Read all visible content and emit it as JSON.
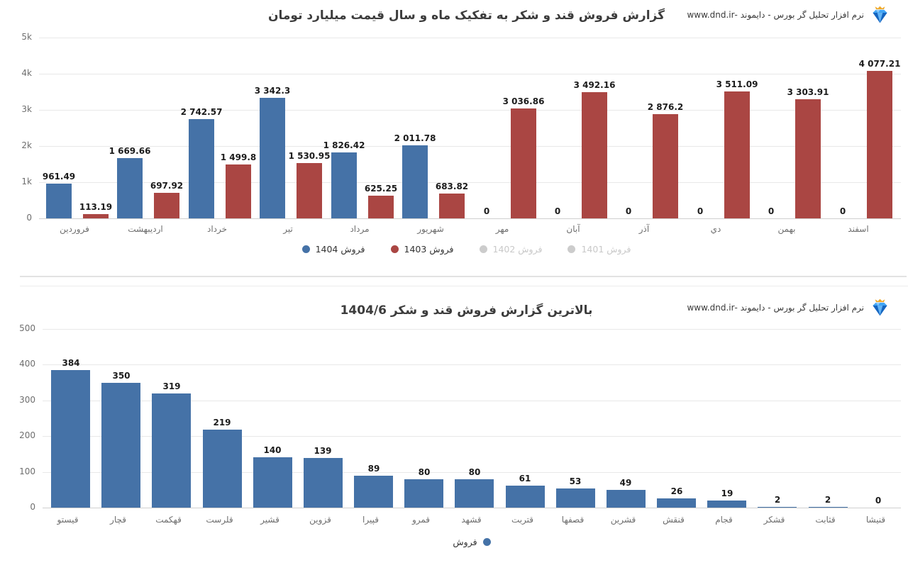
{
  "brand": {
    "text": "نرم افزار تحلیل گر بورس - دایموند -www.dnd.ir",
    "logo": "diamond-crown-icon"
  },
  "colors": {
    "blue": "#4572a7",
    "red": "#aa4643",
    "disabled": "#cccccc"
  },
  "chart_data": [
    {
      "type": "bar",
      "title": "گزارش فروش قند و شکر به تفکیک ماه و سال قیمت میلیارد تومان",
      "categories": [
        "فروردین",
        "اردیبهشت",
        "خرداد",
        "تیر",
        "مرداد",
        "شهریور",
        "مهر",
        "آبان",
        "آذر",
        "دي",
        "بهمن",
        "اسفند"
      ],
      "series": [
        {
          "name": "فروش 1404",
          "color": "#4572a7",
          "values": [
            961.49,
            1669.66,
            2742.57,
            3342.3,
            1826.42,
            2011.78,
            0,
            0,
            0,
            0,
            0,
            0
          ],
          "labels": [
            "961.49",
            "1 669.66",
            "2 742.57",
            "3 342.3",
            "1 826.42",
            "2 011.78",
            "0",
            "0",
            "0",
            "0",
            "0",
            "0"
          ]
        },
        {
          "name": "فروش 1403",
          "color": "#aa4643",
          "values": [
            113.19,
            697.92,
            1499.8,
            1530.95,
            625.25,
            683.82,
            3036.86,
            3492.16,
            2876.2,
            3511.09,
            3303.91,
            4077.21
          ],
          "labels": [
            "113.19",
            "697.92",
            "1 499.8",
            "1 530.95",
            "625.25",
            "683.82",
            "3 036.86",
            "3 492.16",
            "2 876.2",
            "3 511.09",
            "3 303.91",
            "4 077.21"
          ]
        }
      ],
      "legend": [
        {
          "label": "فروش 1404",
          "color": "#4572a7",
          "enabled": true,
          "marker": "left"
        },
        {
          "label": "فروش 1403",
          "color": "#aa4643",
          "enabled": true,
          "marker": "left"
        },
        {
          "label": "فروش 1402",
          "color": "#cccccc",
          "enabled": false,
          "marker": "left"
        },
        {
          "label": "فروش 1401",
          "color": "#cccccc",
          "enabled": false,
          "marker": "left"
        }
      ],
      "ylim": [
        0,
        5000
      ],
      "yticks": [
        {
          "v": 0,
          "label": "0"
        },
        {
          "v": 1000,
          "label": "1k"
        },
        {
          "v": 2000,
          "label": "2k"
        },
        {
          "v": 3000,
          "label": "3k"
        },
        {
          "v": 4000,
          "label": "4k"
        },
        {
          "v": 5000,
          "label": "5k"
        }
      ],
      "grid": true,
      "legend_position": "bottom"
    },
    {
      "type": "bar",
      "title": "بالاترین گزارش فروش قند و شکر 1404/6",
      "categories": [
        "قیستو",
        "قچار",
        "قهکمت",
        "قلرست",
        "قشیر",
        "قزوین",
        "قپیرا",
        "قمرو",
        "قشهد",
        "قتربت",
        "قصفها",
        "قشرین",
        "قنقش",
        "قجام",
        "قشکر",
        "قثابت",
        "قنیشا"
      ],
      "series": [
        {
          "name": "فروش",
          "color": "#4572a7",
          "values": [
            384,
            350,
            319,
            219,
            140,
            139,
            89,
            80,
            80,
            61,
            53,
            49,
            26,
            19,
            2,
            2,
            0
          ],
          "labels": [
            "384",
            "350",
            "319",
            "219",
            "140",
            "139",
            "89",
            "80",
            "80",
            "61",
            "53",
            "49",
            "26",
            "19",
            "2",
            "2",
            "0"
          ]
        }
      ],
      "legend": [
        {
          "label": "فروش",
          "color": "#4572a7",
          "enabled": true,
          "marker": "right"
        }
      ],
      "ylim": [
        0,
        500
      ],
      "yticks": [
        {
          "v": 0,
          "label": "0"
        },
        {
          "v": 100,
          "label": "100"
        },
        {
          "v": 200,
          "label": "200"
        },
        {
          "v": 300,
          "label": "300"
        },
        {
          "v": 400,
          "label": "400"
        },
        {
          "v": 500,
          "label": "500"
        }
      ],
      "grid": true,
      "legend_position": "bottom"
    }
  ]
}
